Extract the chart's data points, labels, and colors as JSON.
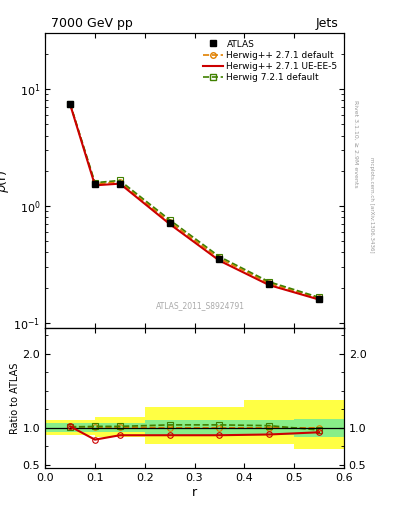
{
  "title_top": "7000 GeV pp",
  "title_right": "Jets",
  "ylabel_main": "$\\rho$(r)",
  "ylabel_ratio": "Ratio to ATLAS",
  "xlabel": "r",
  "watermark": "ATLAS_2011_S8924791",
  "rivet_label": "Rivet 3.1.10, ≥ 2.9M events",
  "arxiv_label": "mcplots.cern.ch [arXiv:1306.3436]",
  "x_data": [
    0.05,
    0.1,
    0.15,
    0.25,
    0.35,
    0.45,
    0.55
  ],
  "atlas_y": [
    7.5,
    1.55,
    1.55,
    0.72,
    0.35,
    0.215,
    0.16
  ],
  "atlas_yerr": [
    0.12,
    0.06,
    0.06,
    0.025,
    0.012,
    0.008,
    0.006
  ],
  "herwig271_default_y": [
    7.5,
    1.55,
    1.6,
    0.73,
    0.355,
    0.218,
    0.162
  ],
  "herwig271_ueee5_y": [
    7.4,
    1.5,
    1.55,
    0.7,
    0.34,
    0.21,
    0.158
  ],
  "herwig721_default_y": [
    7.5,
    1.58,
    1.65,
    0.76,
    0.368,
    0.224,
    0.165
  ],
  "ratio_herwig271_default": [
    1.02,
    1.01,
    1.01,
    1.0,
    1.0,
    1.0,
    1.0
  ],
  "ratio_herwig271_ueee5": [
    1.02,
    0.84,
    0.9,
    0.9,
    0.9,
    0.91,
    0.94
  ],
  "ratio_herwig721_default": [
    1.01,
    1.02,
    1.02,
    1.04,
    1.04,
    1.03,
    0.97
  ],
  "band_x_edges": [
    0.0,
    0.1,
    0.2,
    0.3,
    0.4,
    0.5,
    0.6
  ],
  "band_yellow_lo": [
    0.9,
    0.88,
    0.78,
    0.78,
    0.78,
    0.72
  ],
  "band_yellow_hi": [
    1.1,
    1.15,
    1.28,
    1.28,
    1.38,
    1.38
  ],
  "band_green_lo": [
    0.94,
    0.94,
    0.9,
    0.9,
    0.9,
    0.88
  ],
  "band_green_hi": [
    1.06,
    1.06,
    1.1,
    1.1,
    1.1,
    1.12
  ],
  "color_atlas": "#000000",
  "color_herwig271_default": "#e08000",
  "color_herwig271_ueee5": "#cc0000",
  "color_herwig721_default": "#408000",
  "color_yellow": "#ffff44",
  "color_green": "#88ee88",
  "ylim_main": [
    0.09,
    30
  ],
  "ylim_ratio": [
    0.45,
    2.35
  ],
  "xlim": [
    0.0,
    0.6
  ]
}
